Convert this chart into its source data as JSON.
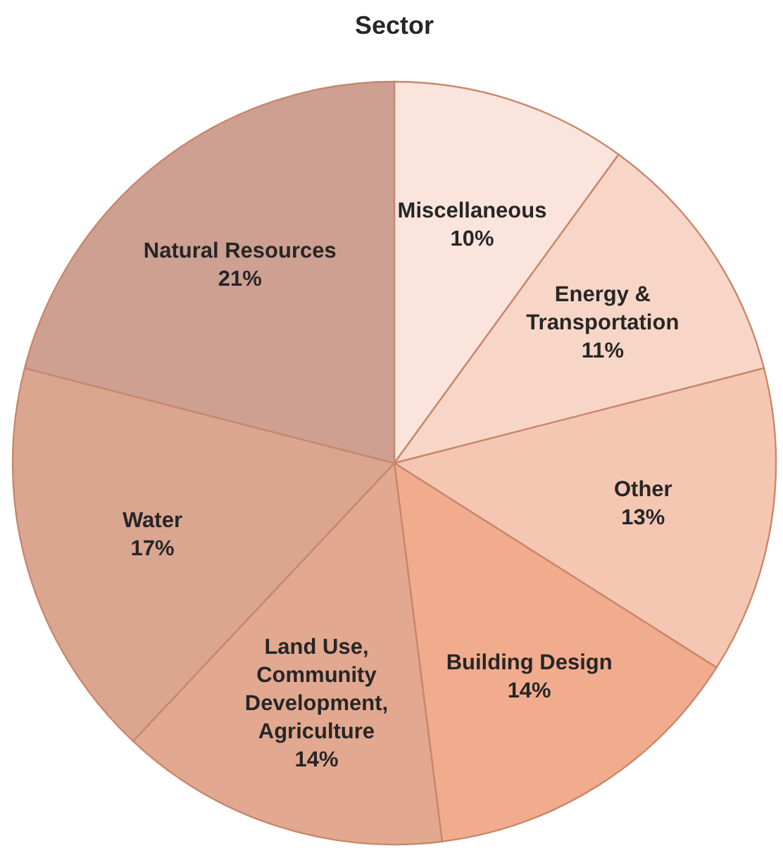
{
  "chart_data": {
    "type": "pie",
    "title": "Sector",
    "categories": [
      "Miscellaneous",
      "Energy & Transportation",
      "Other",
      "Building Design",
      "Land Use, Community Development, Agriculture",
      "Water",
      "Natural Resources"
    ],
    "values": [
      10,
      11,
      13,
      14,
      14,
      17,
      21
    ],
    "colors": [
      "#fbe4dc",
      "#f8d6c7",
      "#f5c7b3",
      "#f1ac8e",
      "#e2a890",
      "#dba690",
      "#cda092"
    ],
    "value_labels": [
      "10%",
      "11%",
      "13%",
      "14%",
      "14%",
      "17%",
      "21%"
    ]
  }
}
